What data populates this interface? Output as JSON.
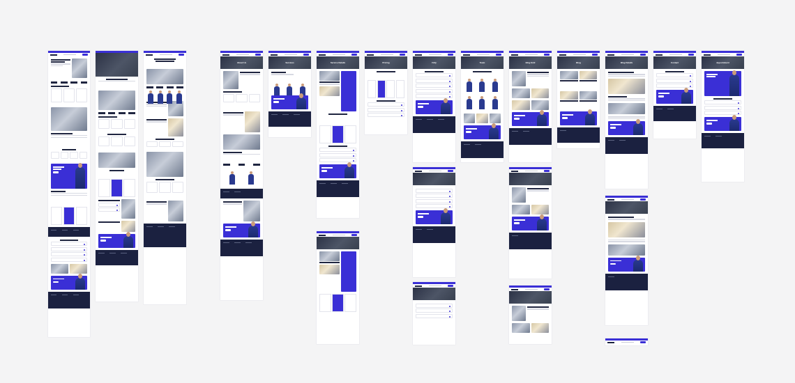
{
  "canvas": {
    "background": "#f4f4f5",
    "accent": "#3a2fd6",
    "dark": "#1b2140"
  },
  "pages": [
    {
      "id": "home-1",
      "hero_title": "",
      "sections": [
        "hero-home",
        "features",
        "about",
        "services",
        "process",
        "cta",
        "testimonials",
        "pricing",
        "faq",
        "blog",
        "cta",
        "footer"
      ]
    },
    {
      "id": "home-2",
      "hero_title": "",
      "sections": [
        "hero-home-dark",
        "logos",
        "about",
        "stats",
        "services",
        "video",
        "pricing",
        "process",
        "blog",
        "cta",
        "footer"
      ]
    },
    {
      "id": "home-3",
      "hero_title": "",
      "sections": [
        "hero-video",
        "stats",
        "team",
        "about",
        "services",
        "video",
        "steps",
        "blog",
        "footer"
      ]
    },
    {
      "id": "about",
      "hero_title": "About Us",
      "sections": [
        "video",
        "stats",
        "about",
        "services",
        "process",
        "team",
        "footer",
        "blog",
        "cta",
        "footer"
      ]
    },
    {
      "id": "services",
      "hero_title": "Services",
      "sections": [
        "team-list",
        "cta",
        "footer"
      ]
    },
    {
      "id": "service-details",
      "hero_title": "Service Details",
      "sections": [
        "details",
        "list",
        "pricing",
        "faq",
        "cta",
        "footer"
      ]
    },
    {
      "id": "pricing",
      "hero_title": "Pricing",
      "sections": [
        "pricing",
        "faq",
        "cta",
        "footer"
      ]
    },
    {
      "id": "faq",
      "hero_title": "FAQ",
      "sections": [
        "faq",
        "faq",
        "cta",
        "footer"
      ]
    },
    {
      "id": "team",
      "hero_title": "Team",
      "sections": [
        "team-grid",
        "blog",
        "cta",
        "footer"
      ]
    },
    {
      "id": "blog-grid",
      "hero_title": "Blog Grid",
      "sections": [
        "post-list",
        "cta",
        "footer"
      ]
    },
    {
      "id": "blog",
      "hero_title": "Blog",
      "sections": [
        "post-grid",
        "cta",
        "footer"
      ]
    },
    {
      "id": "blog-details",
      "hero_title": "Blog Details",
      "sections": [
        "article",
        "cta",
        "footer"
      ]
    },
    {
      "id": "contact",
      "hero_title": "Contact",
      "sections": [
        "contact-form",
        "cta",
        "footer"
      ]
    },
    {
      "id": "appointment",
      "hero_title": "Appointment",
      "sections": [
        "worker",
        "form",
        "faq",
        "cta",
        "footer"
      ]
    }
  ]
}
